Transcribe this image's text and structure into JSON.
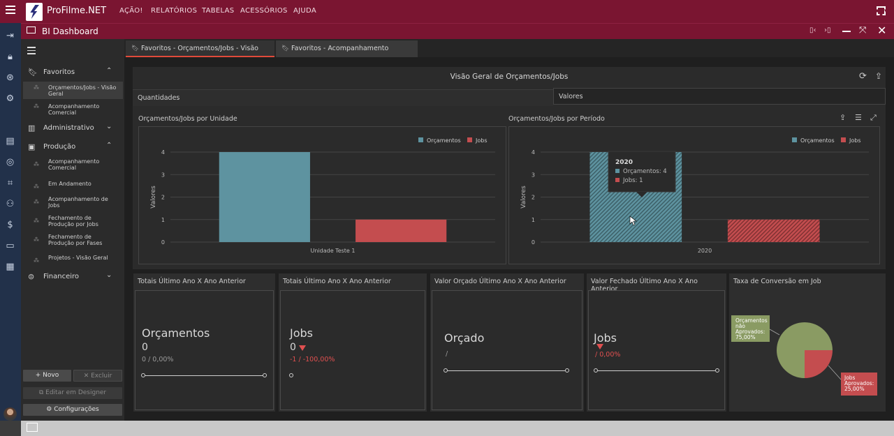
{
  "app": {
    "brand": "ProFilme.NET",
    "menu": [
      "AÇÃO!",
      "RELATÓRIOS",
      "TABELAS",
      "ACESSÓRIOS",
      "AJUDA"
    ],
    "window_title": "BI Dashboard"
  },
  "sidebar": {
    "sections": [
      {
        "label": "Favoritos",
        "icon": "bookmark-icon",
        "expanded": true
      },
      {
        "label": "Administrativo",
        "icon": "building-icon",
        "expanded": false
      },
      {
        "label": "Produção",
        "icon": "briefcase-icon",
        "expanded": true
      },
      {
        "label": "Financeiro",
        "icon": "money-icon",
        "expanded": false
      }
    ],
    "favoritos_items": [
      "Orçamentos/Jobs - Visão Geral",
      "Acompanhamento Comercial"
    ],
    "producao_items": [
      "Acompanhamento Comercial",
      "Em Andamento",
      "Acompanhamento de Jobs",
      "Fechamento de Produção por Jobs",
      "Fechamento de Produção por Fases",
      "Projetos - Visão Geral"
    ],
    "buttons": {
      "novo": "Novo",
      "excluir": "Excluir",
      "editar": "Editar em Designer",
      "config": "Configurações"
    }
  },
  "tabs": [
    "Favoritos - Orçamentos/Jobs - Visão Geral",
    "Favoritos - Acompanhamento Comercial"
  ],
  "dashboard": {
    "title": "Visão Geral de Orçamentos/Jobs",
    "subtabs": [
      "Quantidades",
      "Valores"
    ],
    "chart1_title": "Orçamentos/Jobs por Unidade",
    "chart2_title": "Orçamentos/Jobs por Período",
    "tooltip": {
      "title": "2020",
      "line1": "Orçamentos: 4",
      "line2": "Jobs: 1"
    },
    "cards": [
      {
        "title": "Totais Último Ano X Ano Anterior",
        "label": "Orçamentos",
        "value": "0",
        "sub": "0 / 0,00%"
      },
      {
        "title": "Totais Último Ano X Ano Anterior",
        "label": "Jobs",
        "value": "0",
        "sub": "-1 / -100,00%"
      },
      {
        "title": "Valor Orçado Último Ano X Ano Anterior",
        "label": "Orçado",
        "value": "",
        "sub": "/"
      },
      {
        "title": "Valor Fechado Último Ano X Ano Anterior",
        "label": "Jobs",
        "value": "",
        "sub": "/ 0,00%"
      },
      {
        "title": "Taxa de Conversão em Job",
        "label": "",
        "value": "",
        "sub": ""
      }
    ],
    "pie_labels": {
      "a": [
        "Orçamentos",
        "não",
        "Aprovados:",
        "75,00%"
      ],
      "b": [
        "Jobs",
        "Aprovados:",
        "25,00%"
      ]
    }
  },
  "colors": {
    "orcamentos": "#5e93a0",
    "jobs": "#c44d4f",
    "pie_a": "#8a9b63",
    "pie_b": "#c44d4f"
  },
  "chart_data": [
    {
      "type": "bar",
      "title": "Orçamentos/Jobs por Unidade",
      "categories": [
        "Unidade Teste 1"
      ],
      "series": [
        {
          "name": "Orçamentos",
          "values": [
            4
          ]
        },
        {
          "name": "Jobs",
          "values": [
            1
          ]
        }
      ],
      "ylabel": "Valores",
      "ylim": [
        0,
        4
      ],
      "yticks": [
        "0",
        "1",
        "2",
        "3",
        "4"
      ],
      "legend": "top-right"
    },
    {
      "type": "bar",
      "title": "Orçamentos/Jobs por Período",
      "categories": [
        "2020"
      ],
      "series": [
        {
          "name": "Orçamentos",
          "values": [
            4
          ]
        },
        {
          "name": "Jobs",
          "values": [
            1
          ]
        }
      ],
      "ylabel": "Valores",
      "ylim": [
        0,
        4
      ],
      "yticks": [
        "0",
        "1",
        "2",
        "3",
        "4"
      ],
      "legend": "top-right"
    },
    {
      "type": "pie",
      "title": "Taxa de Conversão em Job",
      "categories": [
        "Orçamentos não Aprovados",
        "Jobs Aprovados"
      ],
      "values": [
        75,
        25
      ]
    }
  ]
}
